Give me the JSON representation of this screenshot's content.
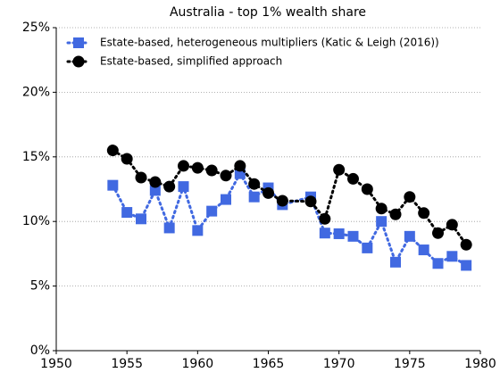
{
  "chart_data": {
    "type": "line",
    "title": "Australia - top 1% wealth share",
    "x": [
      1954,
      1955,
      1956,
      1957,
      1958,
      1959,
      1960,
      1961,
      1962,
      1963,
      1964,
      1965,
      1966,
      1968,
      1969,
      1970,
      1971,
      1972,
      1973,
      1974,
      1975,
      1976,
      1977,
      1978,
      1979
    ],
    "series": [
      {
        "name": "Estate-based, heterogeneous multipliers (Katic & Leigh (2016))",
        "color": "#4169e1",
        "marker": "square",
        "values": [
          12.8,
          10.7,
          10.2,
          12.4,
          9.5,
          12.7,
          9.3,
          10.8,
          11.7,
          13.7,
          11.9,
          12.6,
          11.3,
          11.9,
          9.1,
          9.05,
          8.85,
          7.95,
          10.0,
          6.85,
          8.85,
          7.8,
          6.75,
          7.3,
          6.6
        ]
      },
      {
        "name": "Estate-based, simplified approach",
        "color": "#000000",
        "marker": "circle",
        "values": [
          15.5,
          14.85,
          13.4,
          13.05,
          12.7,
          14.3,
          14.15,
          13.95,
          13.55,
          14.3,
          12.9,
          12.2,
          11.6,
          11.55,
          10.2,
          14.0,
          13.3,
          12.5,
          11.0,
          10.55,
          11.9,
          10.65,
          9.1,
          9.75,
          8.2
        ]
      }
    ],
    "xlim": [
      1950,
      1980
    ],
    "xticks": [
      1950,
      1955,
      1960,
      1965,
      1970,
      1975,
      1980
    ],
    "ylim": [
      0,
      25
    ],
    "yticks": [
      {
        "value": 0,
        "label": "0%"
      },
      {
        "value": 5,
        "label": "5%"
      },
      {
        "value": 10,
        "label": "10%"
      },
      {
        "value": 15,
        "label": "15%"
      },
      {
        "value": 20,
        "label": "20%"
      },
      {
        "value": 25,
        "label": "25%"
      }
    ],
    "grid": true,
    "legend": "upper-left"
  }
}
